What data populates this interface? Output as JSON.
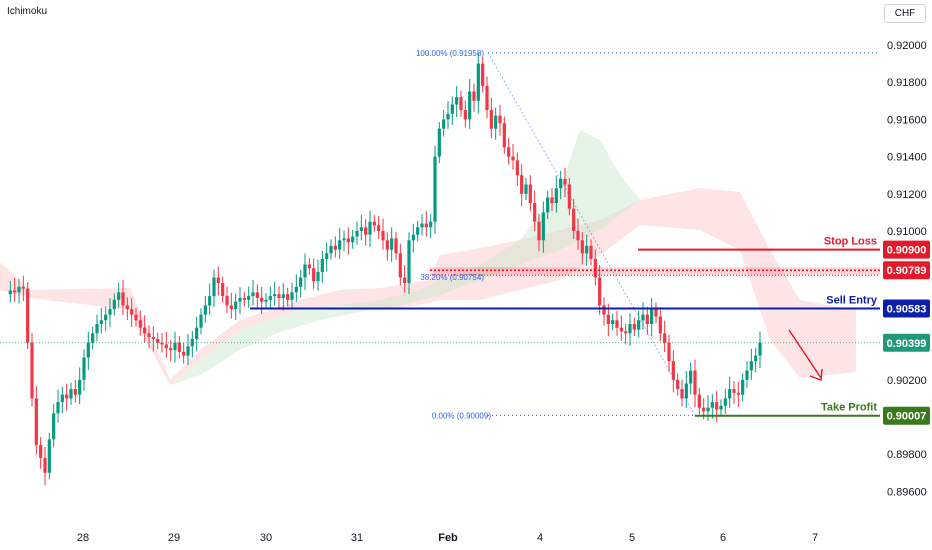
{
  "indicator_label": "Ichimoku",
  "currency_button": "CHF",
  "colors": {
    "bull": "#089981",
    "bear": "#f23645",
    "cloud_bull": "#c8e6c9",
    "cloud_bear": "#ffcdd2",
    "stop_loss": "#e5192a",
    "sell_entry": "#0d1fa6",
    "take_profit": "#3a7a1a",
    "current": "#22987a",
    "fib": "#2962ff"
  },
  "levels": {
    "stop_loss": {
      "label": "Stop Loss",
      "value": "0.90900"
    },
    "resistance": {
      "value": "0.90789"
    },
    "sell_entry": {
      "label": "Sell Entry",
      "value": "0.90583"
    },
    "current": {
      "value": "0.90399"
    },
    "take_profit": {
      "label": "Take Profit",
      "value": "0.90007"
    }
  },
  "fib": {
    "top": "100.00% (0.91958)",
    "mid": "38.20% (0.90754)",
    "bottom": "0.00% (0.90009)"
  },
  "chart_data": {
    "type": "candlestick",
    "title": "",
    "ylim": [
      0.895,
      0.921
    ],
    "y_ticks": [
      "0.92000",
      "0.91800",
      "0.91600",
      "0.91400",
      "0.91200",
      "0.91000",
      "0.90800",
      "0.90600",
      "0.90400",
      "0.90200",
      "0.90000",
      "0.89800",
      "0.89600"
    ],
    "x_ticks": [
      "28",
      "29",
      "30",
      "31",
      "Feb",
      "4",
      "5",
      "6",
      "7"
    ],
    "x_ticks_bold": [
      "Feb"
    ],
    "close_path": [
      0.9066,
      0.9068,
      0.9067,
      0.907,
      0.9069,
      0.904,
      0.901,
      0.8985,
      0.8978,
      0.897,
      0.8988,
      0.9002,
      0.9008,
      0.9012,
      0.901,
      0.9015,
      0.9012,
      0.902,
      0.9032,
      0.904,
      0.9045,
      0.905,
      0.9052,
      0.9055,
      0.9058,
      0.9063,
      0.9067,
      0.906,
      0.9058,
      0.9055,
      0.9052,
      0.9048,
      0.9045,
      0.9043,
      0.9042,
      0.904,
      0.9039,
      0.9037,
      0.9036,
      0.904,
      0.9035,
      0.9033,
      0.9038,
      0.9042,
      0.9048,
      0.9055,
      0.906,
      0.9065,
      0.9075,
      0.9072,
      0.9065,
      0.906,
      0.9058,
      0.9062,
      0.9064,
      0.9063,
      0.9065,
      0.9067,
      0.9064,
      0.9062,
      0.9063,
      0.9065,
      0.9066,
      0.9064,
      0.9066,
      0.9063,
      0.9067,
      0.907,
      0.9075,
      0.9082,
      0.908,
      0.9073,
      0.9078,
      0.9085,
      0.9088,
      0.9092,
      0.909,
      0.9095,
      0.9096,
      0.9094,
      0.9097,
      0.91,
      0.9102,
      0.9098,
      0.9105,
      0.9103,
      0.91,
      0.9095,
      0.909,
      0.9096,
      0.9088,
      0.9075,
      0.9072,
      0.9095,
      0.9098,
      0.9102,
      0.9104,
      0.9102,
      0.9105,
      0.914,
      0.9155,
      0.916,
      0.9163,
      0.9168,
      0.9172,
      0.9165,
      0.916,
      0.9175,
      0.917,
      0.919,
      0.9178,
      0.9165,
      0.9155,
      0.9162,
      0.9158,
      0.9145,
      0.914,
      0.9138,
      0.913,
      0.912,
      0.9125,
      0.9115,
      0.9105,
      0.9095,
      0.911,
      0.9118,
      0.9115,
      0.9123,
      0.9128,
      0.9125,
      0.9112,
      0.91,
      0.9095,
      0.9088,
      0.9092,
      0.9085,
      0.9075,
      0.906,
      0.9055,
      0.905,
      0.9052,
      0.9048,
      0.9046,
      0.9045,
      0.905,
      0.9047,
      0.9052,
      0.9055,
      0.905,
      0.9058,
      0.9054,
      0.9045,
      0.904,
      0.903,
      0.902,
      0.9015,
      0.901,
      0.9018,
      0.9025,
      0.9012,
      0.9005,
      0.9003,
      0.9005,
      0.9008,
      0.9004,
      0.9006,
      0.901,
      0.9015,
      0.9013,
      0.9012,
      0.902,
      0.9025,
      0.903,
      0.9033,
      0.904
    ]
  }
}
